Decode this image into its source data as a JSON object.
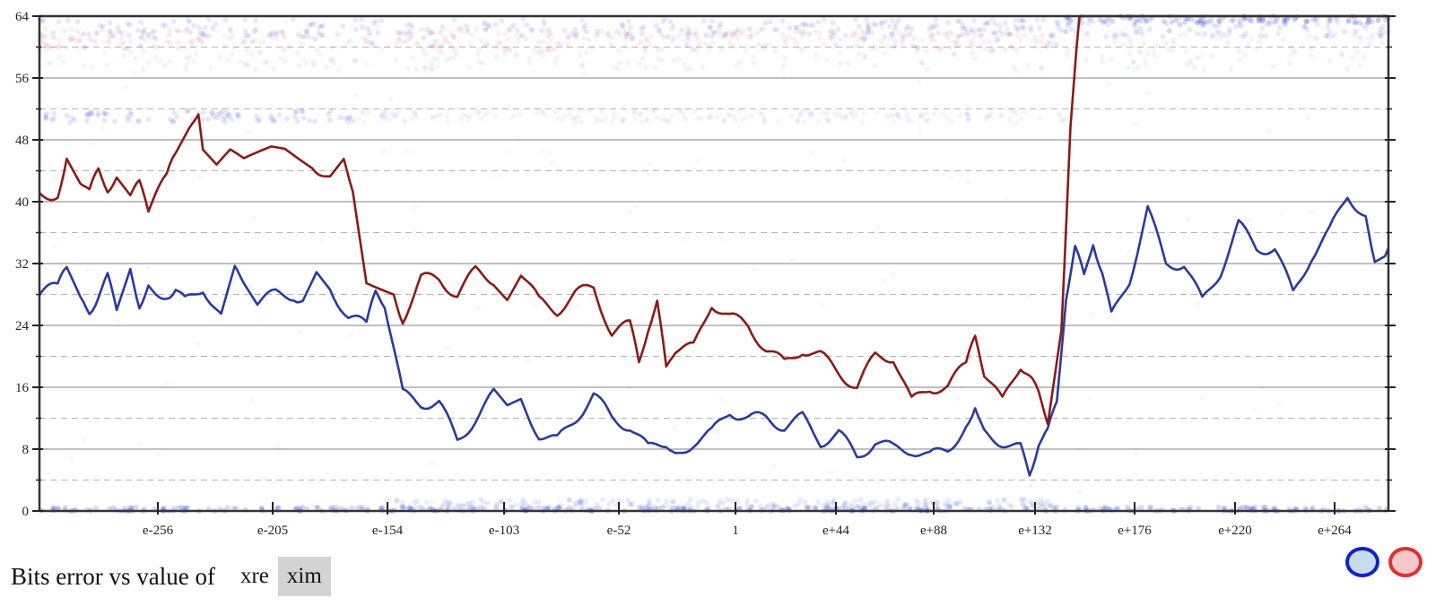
{
  "chart_data": {
    "type": "line",
    "title": "",
    "xlabel": "",
    "ylabel": "",
    "ylim": [
      0,
      64
    ],
    "y_ticks": [
      0,
      8,
      16,
      24,
      32,
      40,
      48,
      56,
      64
    ],
    "x_ticks": [
      "e-256",
      "e-205",
      "e-154",
      "e-103",
      "e-52",
      "1",
      "e+44",
      "e+88",
      "e+132",
      "e+176",
      "e+220",
      "e+264"
    ],
    "grid": true,
    "series": [
      {
        "color": "#2b3a9e",
        "points": [
          [
            0,
            28
          ],
          [
            20,
            29
          ],
          [
            30,
            31
          ],
          [
            45,
            27
          ],
          [
            55,
            26
          ],
          [
            65,
            28
          ],
          [
            75,
            30
          ],
          [
            85,
            26
          ],
          [
            100,
            31
          ],
          [
            110,
            27
          ],
          [
            120,
            29
          ],
          [
            140,
            28
          ],
          [
            150,
            29
          ],
          [
            160,
            27
          ],
          [
            180,
            29
          ],
          [
            200,
            25
          ],
          [
            215,
            31
          ],
          [
            225,
            30
          ],
          [
            240,
            27
          ],
          [
            260,
            28
          ],
          [
            280,
            28
          ],
          [
            290,
            27
          ],
          [
            305,
            31
          ],
          [
            320,
            29
          ],
          [
            340,
            25
          ],
          [
            360,
            24
          ],
          [
            370,
            28
          ],
          [
            380,
            27
          ],
          [
            400,
            15
          ],
          [
            420,
            14
          ],
          [
            440,
            14
          ],
          [
            460,
            9
          ],
          [
            480,
            12
          ],
          [
            500,
            15
          ],
          [
            515,
            13
          ],
          [
            530,
            14
          ],
          [
            550,
            10
          ],
          [
            570,
            9
          ],
          [
            590,
            12
          ],
          [
            610,
            15
          ],
          [
            630,
            12
          ],
          [
            650,
            11
          ],
          [
            670,
            8
          ],
          [
            690,
            9
          ],
          [
            700,
            7
          ],
          [
            720,
            9
          ],
          [
            740,
            10
          ],
          [
            760,
            13
          ],
          [
            780,
            12
          ],
          [
            800,
            12
          ],
          [
            820,
            11
          ],
          [
            840,
            12
          ],
          [
            860,
            9
          ],
          [
            880,
            10
          ],
          [
            900,
            7
          ],
          [
            920,
            9
          ],
          [
            940,
            8
          ],
          [
            960,
            8
          ],
          [
            980,
            7
          ],
          [
            1000,
            8
          ],
          [
            1020,
            11
          ],
          [
            1030,
            14
          ],
          [
            1040,
            10
          ],
          [
            1060,
            9
          ],
          [
            1080,
            8
          ],
          [
            1090,
            5
          ],
          [
            1100,
            9
          ],
          [
            1110,
            10
          ],
          [
            1120,
            14
          ],
          [
            1130,
            28
          ],
          [
            1140,
            34
          ],
          [
            1150,
            30
          ],
          [
            1160,
            35
          ],
          [
            1170,
            31
          ],
          [
            1180,
            25
          ],
          [
            1200,
            30
          ],
          [
            1220,
            39
          ],
          [
            1240,
            32
          ],
          [
            1260,
            32
          ],
          [
            1280,
            27
          ],
          [
            1300,
            31
          ],
          [
            1320,
            37
          ],
          [
            1340,
            34
          ],
          [
            1360,
            34
          ],
          [
            1380,
            28
          ],
          [
            1400,
            33
          ],
          [
            1420,
            36
          ],
          [
            1440,
            41
          ],
          [
            1460,
            38
          ],
          [
            1470,
            33
          ],
          [
            1485,
            34
          ]
        ]
      },
      {
        "color": "#8b1a1a",
        "points": [
          [
            0,
            41
          ],
          [
            20,
            41
          ],
          [
            30,
            46
          ],
          [
            45,
            43
          ],
          [
            55,
            41
          ],
          [
            65,
            44
          ],
          [
            75,
            42
          ],
          [
            85,
            43
          ],
          [
            100,
            41
          ],
          [
            110,
            42
          ],
          [
            120,
            39
          ],
          [
            140,
            43
          ],
          [
            150,
            46
          ],
          [
            165,
            49
          ],
          [
            175,
            52
          ],
          [
            180,
            46
          ],
          [
            195,
            44
          ],
          [
            210,
            46
          ],
          [
            225,
            45
          ],
          [
            240,
            46
          ],
          [
            255,
            47
          ],
          [
            270,
            47
          ],
          [
            285,
            46
          ],
          [
            300,
            45
          ],
          [
            320,
            43
          ],
          [
            335,
            45
          ],
          [
            345,
            42
          ],
          [
            360,
            30
          ],
          [
            375,
            29
          ],
          [
            390,
            28
          ],
          [
            400,
            25
          ],
          [
            420,
            30
          ],
          [
            440,
            30
          ],
          [
            460,
            28
          ],
          [
            480,
            31
          ],
          [
            500,
            30
          ],
          [
            515,
            28
          ],
          [
            530,
            31
          ],
          [
            550,
            27
          ],
          [
            570,
            26
          ],
          [
            590,
            28
          ],
          [
            610,
            29
          ],
          [
            630,
            23
          ],
          [
            650,
            24
          ],
          [
            660,
            19
          ],
          [
            670,
            24
          ],
          [
            680,
            27
          ],
          [
            690,
            18
          ],
          [
            700,
            21
          ],
          [
            720,
            21
          ],
          [
            740,
            27
          ],
          [
            760,
            25
          ],
          [
            780,
            24
          ],
          [
            800,
            21
          ],
          [
            820,
            19
          ],
          [
            840,
            21
          ],
          [
            860,
            20
          ],
          [
            880,
            18
          ],
          [
            900,
            16
          ],
          [
            920,
            20
          ],
          [
            940,
            20
          ],
          [
            960,
            14
          ],
          [
            980,
            16
          ],
          [
            1000,
            16
          ],
          [
            1020,
            19
          ],
          [
            1030,
            22
          ],
          [
            1040,
            18
          ],
          [
            1060,
            14
          ],
          [
            1080,
            19
          ],
          [
            1090,
            17
          ],
          [
            1100,
            15
          ],
          [
            1110,
            12
          ],
          [
            1125,
            24
          ],
          [
            1135,
            50
          ],
          [
            1145,
            64
          ],
          [
            1485,
            64
          ]
        ]
      }
    ]
  },
  "caption": {
    "text": "Bits error vs value of",
    "options": [
      "xre",
      "xim"
    ],
    "selected": "xim"
  },
  "toggles": [
    {
      "name": "blue-series-toggle",
      "color": "#1020d0",
      "fill": "#c8dcf0"
    },
    {
      "name": "red-series-toggle",
      "color": "#e03030",
      "fill": "#f6c8cc"
    }
  ]
}
